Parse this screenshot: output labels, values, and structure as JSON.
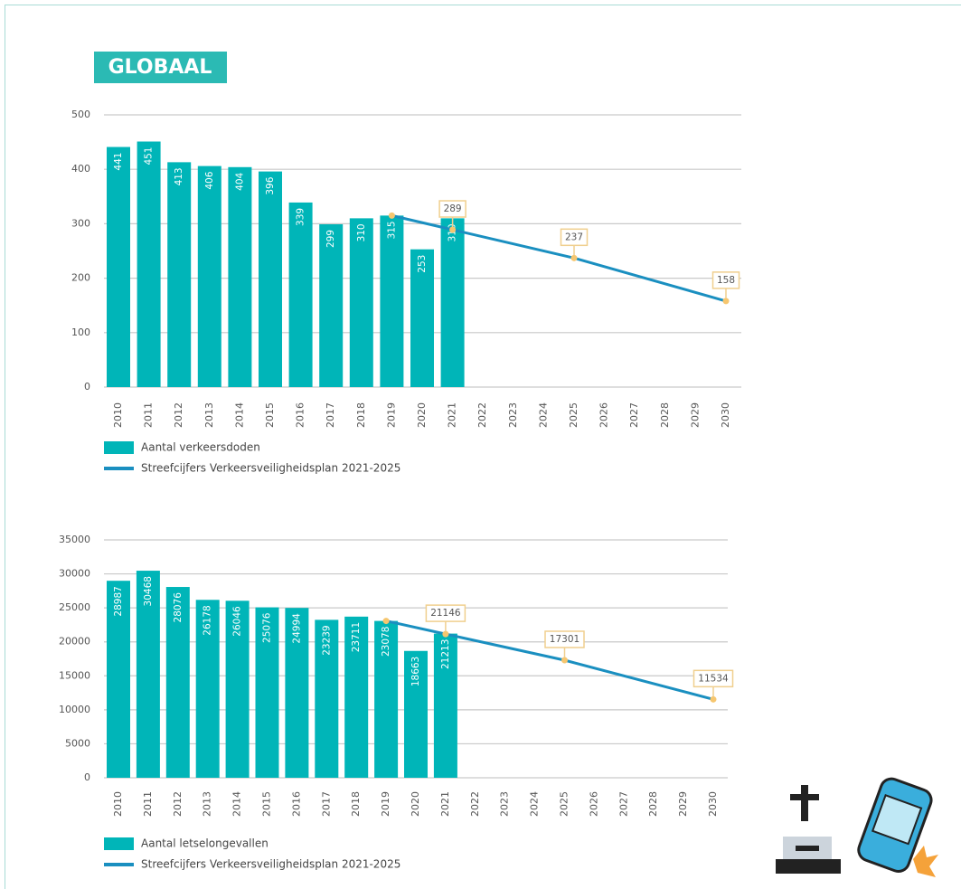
{
  "header": {
    "title": "GLOBAAL"
  },
  "chart_data": [
    {
      "type": "bar",
      "categories": [
        "2010",
        "2011",
        "2012",
        "2013",
        "2014",
        "2015",
        "2016",
        "2017",
        "2018",
        "2019",
        "2020",
        "2021",
        "2022",
        "2023",
        "2024",
        "2025",
        "2026",
        "2027",
        "2028",
        "2029",
        "2030"
      ],
      "ylim": [
        0,
        500
      ],
      "yticks": [
        0,
        100,
        200,
        300,
        400,
        500
      ],
      "grid": true,
      "series": [
        {
          "name": "Aantal verkeersdoden",
          "color": "#00b5b8",
          "values": [
            441,
            451,
            413,
            406,
            404,
            396,
            339,
            299,
            310,
            315,
            253,
            310,
            null,
            null,
            null,
            null,
            null,
            null,
            null,
            null,
            null
          ]
        },
        {
          "name": "Streefcijfers Verkeersveiligheidsplan 2021-2025",
          "color": "#1a8fc0",
          "kind": "line",
          "x": [
            "2019",
            "2021",
            "2025",
            "2030"
          ],
          "values": [
            315,
            289,
            237,
            158
          ],
          "value_labels": [
            null,
            "289",
            "237",
            "158"
          ]
        }
      ]
    },
    {
      "type": "bar",
      "categories": [
        "2010",
        "2011",
        "2012",
        "2013",
        "2014",
        "2015",
        "2016",
        "2017",
        "2018",
        "2019",
        "2020",
        "2021",
        "2022",
        "2023",
        "2024",
        "2025",
        "2026",
        "2027",
        "2028",
        "2029",
        "2030"
      ],
      "ylim": [
        0,
        35000
      ],
      "yticks": [
        0,
        5000,
        10000,
        15000,
        20000,
        25000,
        30000,
        35000
      ],
      "grid": true,
      "series": [
        {
          "name": "Aantal letselongevallen",
          "color": "#00b5b8",
          "values": [
            28987,
            30468,
            28076,
            26178,
            26046,
            25076,
            24994,
            23239,
            23711,
            23078,
            18663,
            21213,
            null,
            null,
            null,
            null,
            null,
            null,
            null,
            null,
            null
          ]
        },
        {
          "name": "Streefcijfers Verkeersveiligheidsplan 2021-2025",
          "color": "#1a8fc0",
          "kind": "line",
          "x": [
            "2019",
            "2021",
            "2025",
            "2030"
          ],
          "values": [
            23078,
            21146,
            17301,
            11534
          ],
          "value_labels": [
            null,
            "21146",
            "17301",
            "11534"
          ]
        }
      ]
    }
  ]
}
